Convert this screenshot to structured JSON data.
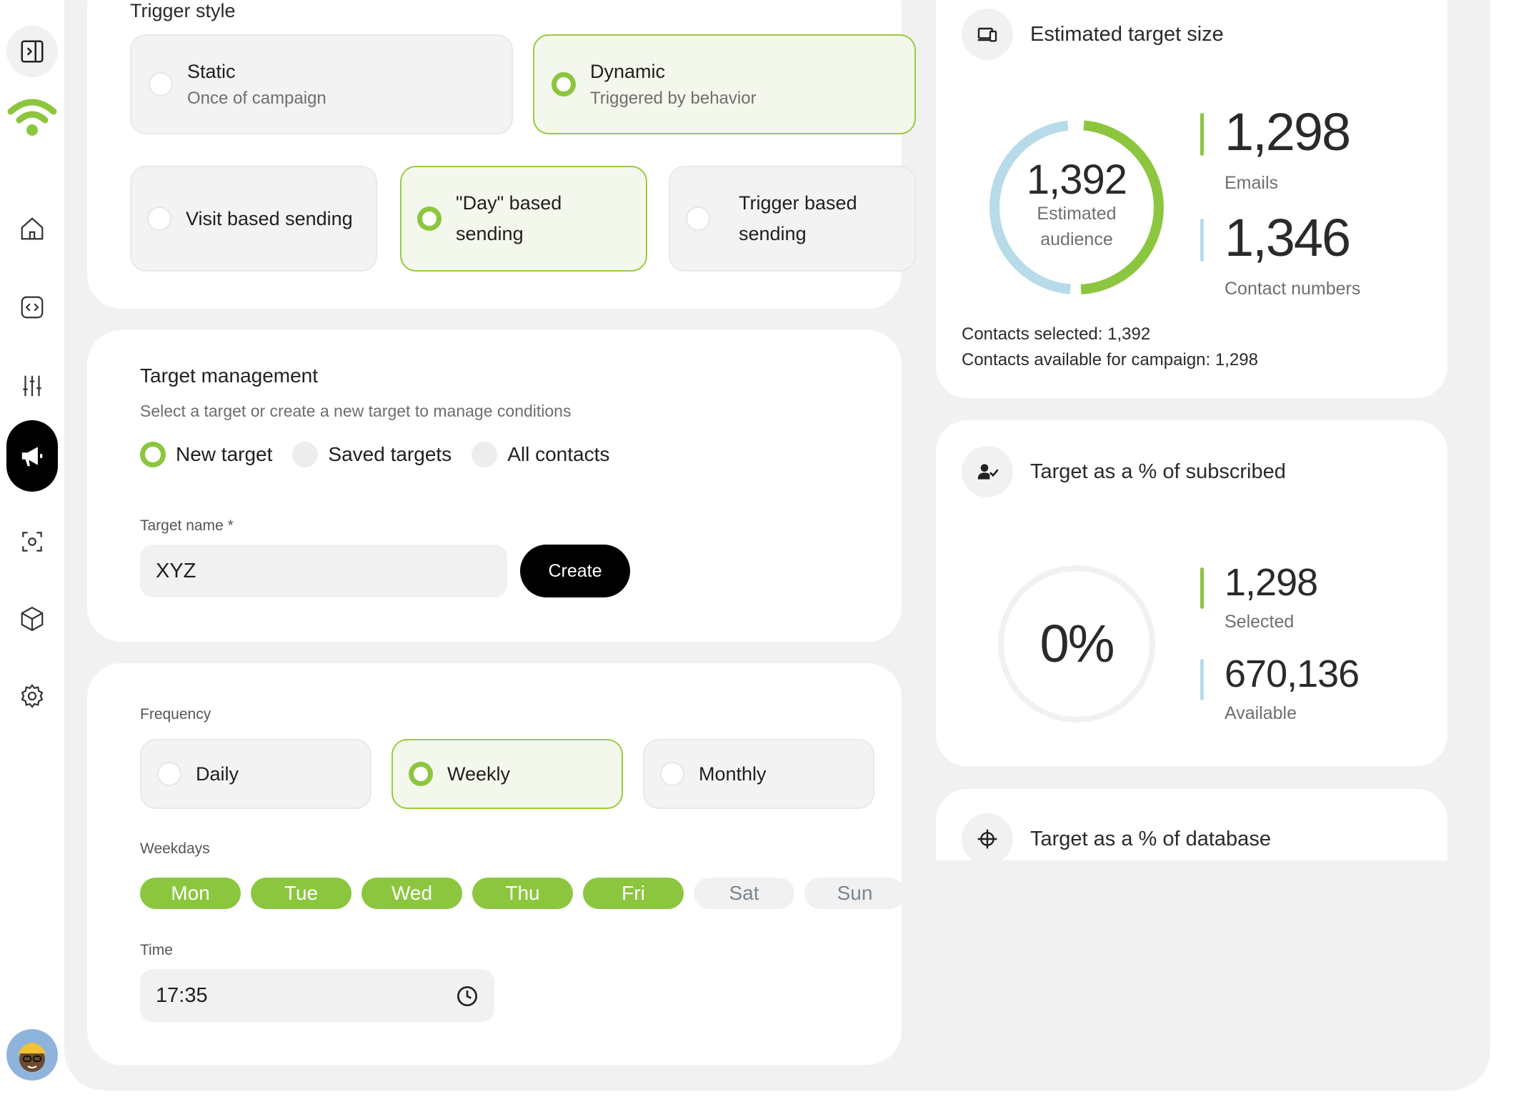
{
  "sidebar": {
    "items": [
      {
        "name": "sidebar-toggle",
        "icon": "sidebar-toggle-icon"
      },
      {
        "name": "home",
        "icon": "home-icon"
      },
      {
        "name": "code",
        "icon": "code-icon"
      },
      {
        "name": "sliders",
        "icon": "sliders-icon"
      },
      {
        "name": "campaigns",
        "icon": "megaphone-icon",
        "active": true
      },
      {
        "name": "scan",
        "icon": "scan-icon"
      },
      {
        "name": "box",
        "icon": "box-icon"
      },
      {
        "name": "settings",
        "icon": "gear-icon"
      }
    ],
    "accent": "#8cc63f"
  },
  "trigger": {
    "title": "Trigger style",
    "static": {
      "title": "Static",
      "sub": "Once of campaign"
    },
    "dynamic": {
      "title": "Dynamic",
      "sub": "Triggered by behavior"
    },
    "visit": "Visit based sending",
    "day_line1": "\"Day\" based",
    "day_line2": "sending",
    "trig_line1": "Trigger based",
    "trig_line2": "sending"
  },
  "target": {
    "title": "Target management",
    "subtitle": "Select a target or create a new target to manage conditions",
    "radios": [
      "New target",
      "Saved targets",
      "All contacts"
    ],
    "name_label": "Target name *",
    "name_value": "XYZ",
    "create_label": "Create"
  },
  "frequency": {
    "label": "Frequency",
    "options": [
      "Daily",
      "Weekly",
      "Monthly"
    ],
    "selected": "Weekly",
    "weekdays_label": "Weekdays",
    "days": [
      {
        "label": "Mon",
        "on": true
      },
      {
        "label": "Tue",
        "on": true
      },
      {
        "label": "Wed",
        "on": true
      },
      {
        "label": "Thu",
        "on": true
      },
      {
        "label": "Fri",
        "on": true
      },
      {
        "label": "Sat",
        "on": false
      },
      {
        "label": "Sun",
        "on": false
      }
    ],
    "time_label": "Time",
    "time_value": "17:35"
  },
  "estimate": {
    "title": "Estimated target size",
    "audience_value": "1,392",
    "audience_label_1": "Estimated",
    "audience_label_2": "audience",
    "emails_value": "1,298",
    "emails_label": "Emails",
    "phones_value": "1,346",
    "phones_label": "Contact numbers",
    "selected_line": "Contacts selected: 1,392",
    "available_line": "Contacts available for campaign: 1,298",
    "colors": {
      "green": "#8cc63f",
      "blue": "#b7dbe8"
    }
  },
  "subscribed": {
    "title": "Target as a % of subscribed",
    "percent": "0%",
    "selected_value": "1,298",
    "selected_label": "Selected",
    "available_value": "670,136",
    "available_label": "Available"
  },
  "database": {
    "title": "Target as a % of database"
  }
}
